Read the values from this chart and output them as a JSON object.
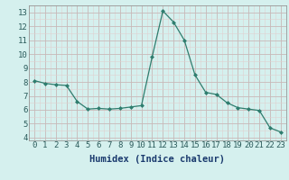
{
  "x": [
    0,
    1,
    2,
    3,
    4,
    5,
    6,
    7,
    8,
    9,
    10,
    11,
    12,
    13,
    14,
    15,
    16,
    17,
    18,
    19,
    20,
    21,
    22,
    23
  ],
  "y": [
    8.1,
    7.9,
    7.8,
    7.75,
    6.6,
    6.05,
    6.1,
    6.05,
    6.1,
    6.2,
    6.3,
    9.8,
    13.1,
    12.3,
    11.0,
    8.5,
    7.25,
    7.1,
    6.5,
    6.15,
    6.05,
    5.95,
    4.7,
    4.4
  ],
  "line_color": "#2e7d6e",
  "marker_color": "#2e7d6e",
  "bg_color": "#d5f0ee",
  "grid_major_color": "#c8b8b8",
  "grid_minor_color": "#e0d0d0",
  "xlabel": "Humidex (Indice chaleur)",
  "ylim": [
    3.8,
    13.5
  ],
  "xlim": [
    -0.5,
    23.5
  ],
  "yticks": [
    4,
    5,
    6,
    7,
    8,
    9,
    10,
    11,
    12,
    13
  ],
  "xticks": [
    0,
    1,
    2,
    3,
    4,
    5,
    6,
    7,
    8,
    9,
    10,
    11,
    12,
    13,
    14,
    15,
    16,
    17,
    18,
    19,
    20,
    21,
    22,
    23
  ],
  "tick_fontsize": 6.5,
  "xlabel_fontsize": 7.5,
  "title_color": "#1a3a6e",
  "tick_color": "#2a5a5a"
}
